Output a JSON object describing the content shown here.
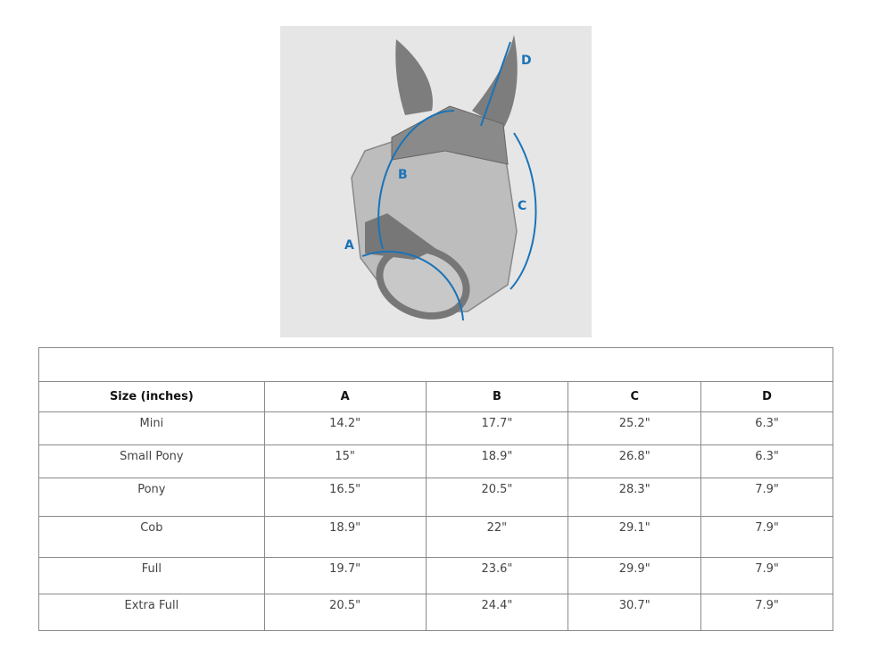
{
  "diagram": {
    "labels": {
      "a": "A",
      "b": "B",
      "c": "C",
      "d": "D"
    },
    "accent_color": "#1a73b8"
  },
  "table": {
    "headers": [
      "Size (inches)",
      "A",
      "B",
      "C",
      "D"
    ],
    "rows": [
      [
        "Mini",
        "14.2\"",
        "17.7\"",
        "25.2\"",
        "6.3\""
      ],
      [
        "Small Pony",
        "15\"",
        "18.9\"",
        "26.8\"",
        "6.3\""
      ],
      [
        "Pony",
        "16.5\"",
        "20.5\"",
        "28.3\"",
        "7.9\""
      ],
      [
        "Cob",
        "18.9\"",
        "22\"",
        "29.1\"",
        "7.9\""
      ],
      [
        "Full",
        "19.7\"",
        "23.6\"",
        "29.9\"",
        "7.9\""
      ],
      [
        "Extra Full",
        "20.5\"",
        "24.4\"",
        "30.7\"",
        "7.9\""
      ]
    ]
  }
}
